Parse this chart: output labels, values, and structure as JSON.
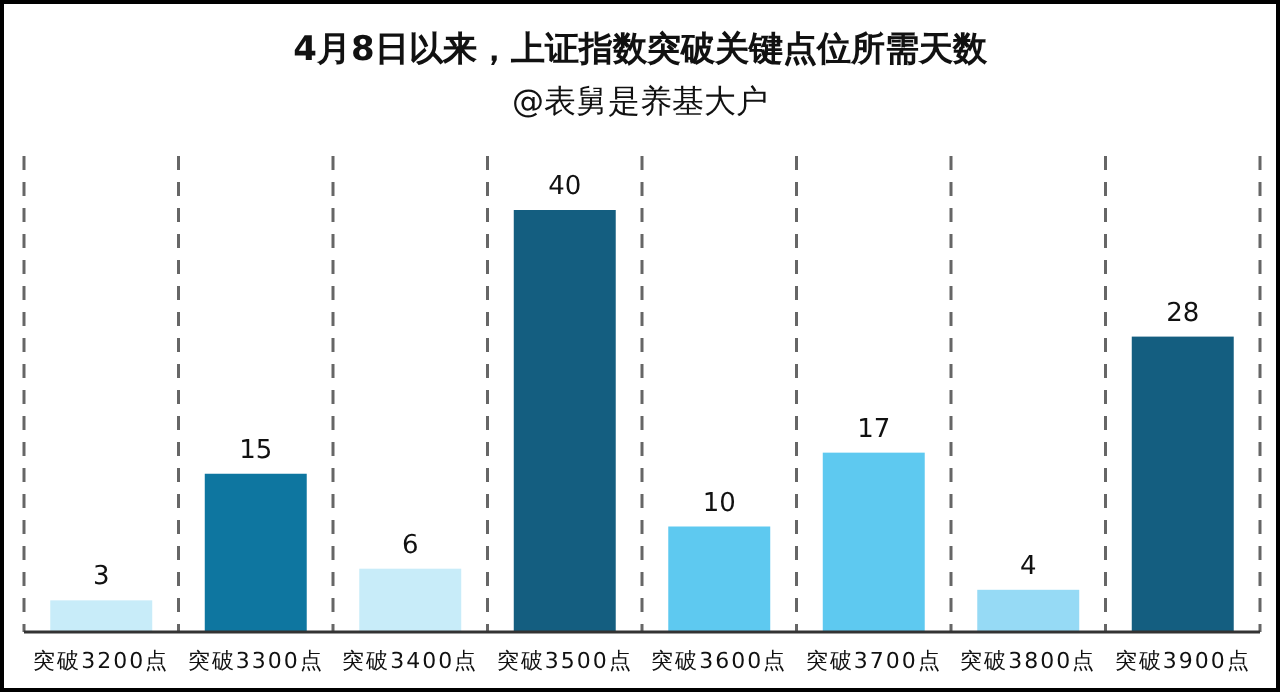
{
  "chart_data": {
    "type": "bar",
    "title": "4月8日以来，上证指数突破关键点位所需天数",
    "subtitle": "@表舅是养基大户",
    "categories": [
      "突破3200点",
      "突破3300点",
      "突破3400点",
      "突破3500点",
      "突破3600点",
      "突破3700点",
      "突破3800点",
      "突破3900点"
    ],
    "values": [
      3,
      15,
      6,
      40,
      10,
      17,
      4,
      28
    ],
    "colors": [
      "#c8ecf9",
      "#0e76a0",
      "#c8ecf9",
      "#145e80",
      "#5ec9f0",
      "#5ec9f0",
      "#96daf5",
      "#145e80"
    ],
    "data_labels": true,
    "grid": "x"
  }
}
